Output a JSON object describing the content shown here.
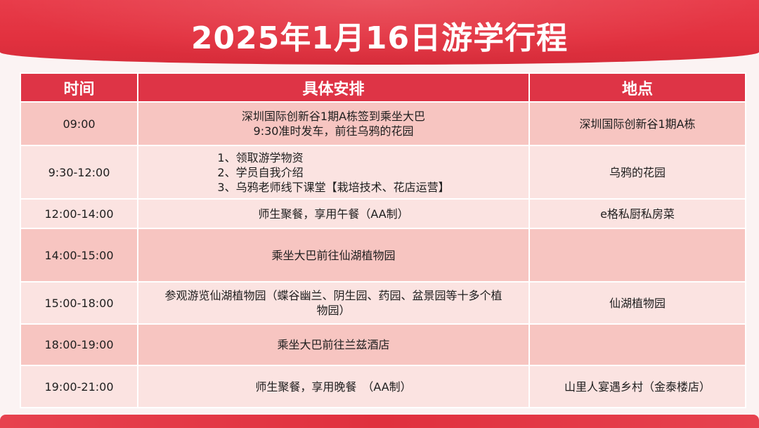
{
  "title": "2025年1月16日游学行程",
  "headers": {
    "time": "时间",
    "plan": "具体安排",
    "location": "地点"
  },
  "rows": [
    {
      "time": "09:00",
      "plan": [
        "深圳国际创新谷1期A栋签到乘坐大巴",
        "9:30准时发车，前往乌鸦的花园"
      ],
      "location": "深圳国际创新谷1期A栋"
    },
    {
      "time": "9:30-12:00",
      "plan": [
        "1、领取游学物资",
        "2、学员自我介绍",
        "3、乌鸦老师线下课堂【栽培技术、花店运营】"
      ],
      "location": "乌鸦的花园"
    },
    {
      "time": "12:00-14:00",
      "plan": [
        "师生聚餐，享用午餐（AA制）"
      ],
      "location": "e格私厨私房菜"
    },
    {
      "time": "14:00-15:00",
      "plan": [
        "乘坐大巴前往仙湖植物园"
      ],
      "location": ""
    },
    {
      "time": "15:00-18:00",
      "plan": [
        "参观游览仙湖植物园（蝶谷幽兰、阴生园、药园、盆景园等十多个植",
        "物园）"
      ],
      "location": "仙湖植物园"
    },
    {
      "time": "18:00-19:00",
      "plan": [
        "乘坐大巴前往兰兹酒店"
      ],
      "location": ""
    },
    {
      "time": "19:00-21:00",
      "plan": [
        "师生聚餐，享用晚餐　（AA制）"
      ],
      "location": "山里人宴遇乡村（金泰楼店）"
    }
  ],
  "colors": {
    "header_red": "#de3446",
    "row_dark": "#f7c5c1",
    "row_light": "#fbe3e1",
    "banner_red": "#e2313f"
  }
}
